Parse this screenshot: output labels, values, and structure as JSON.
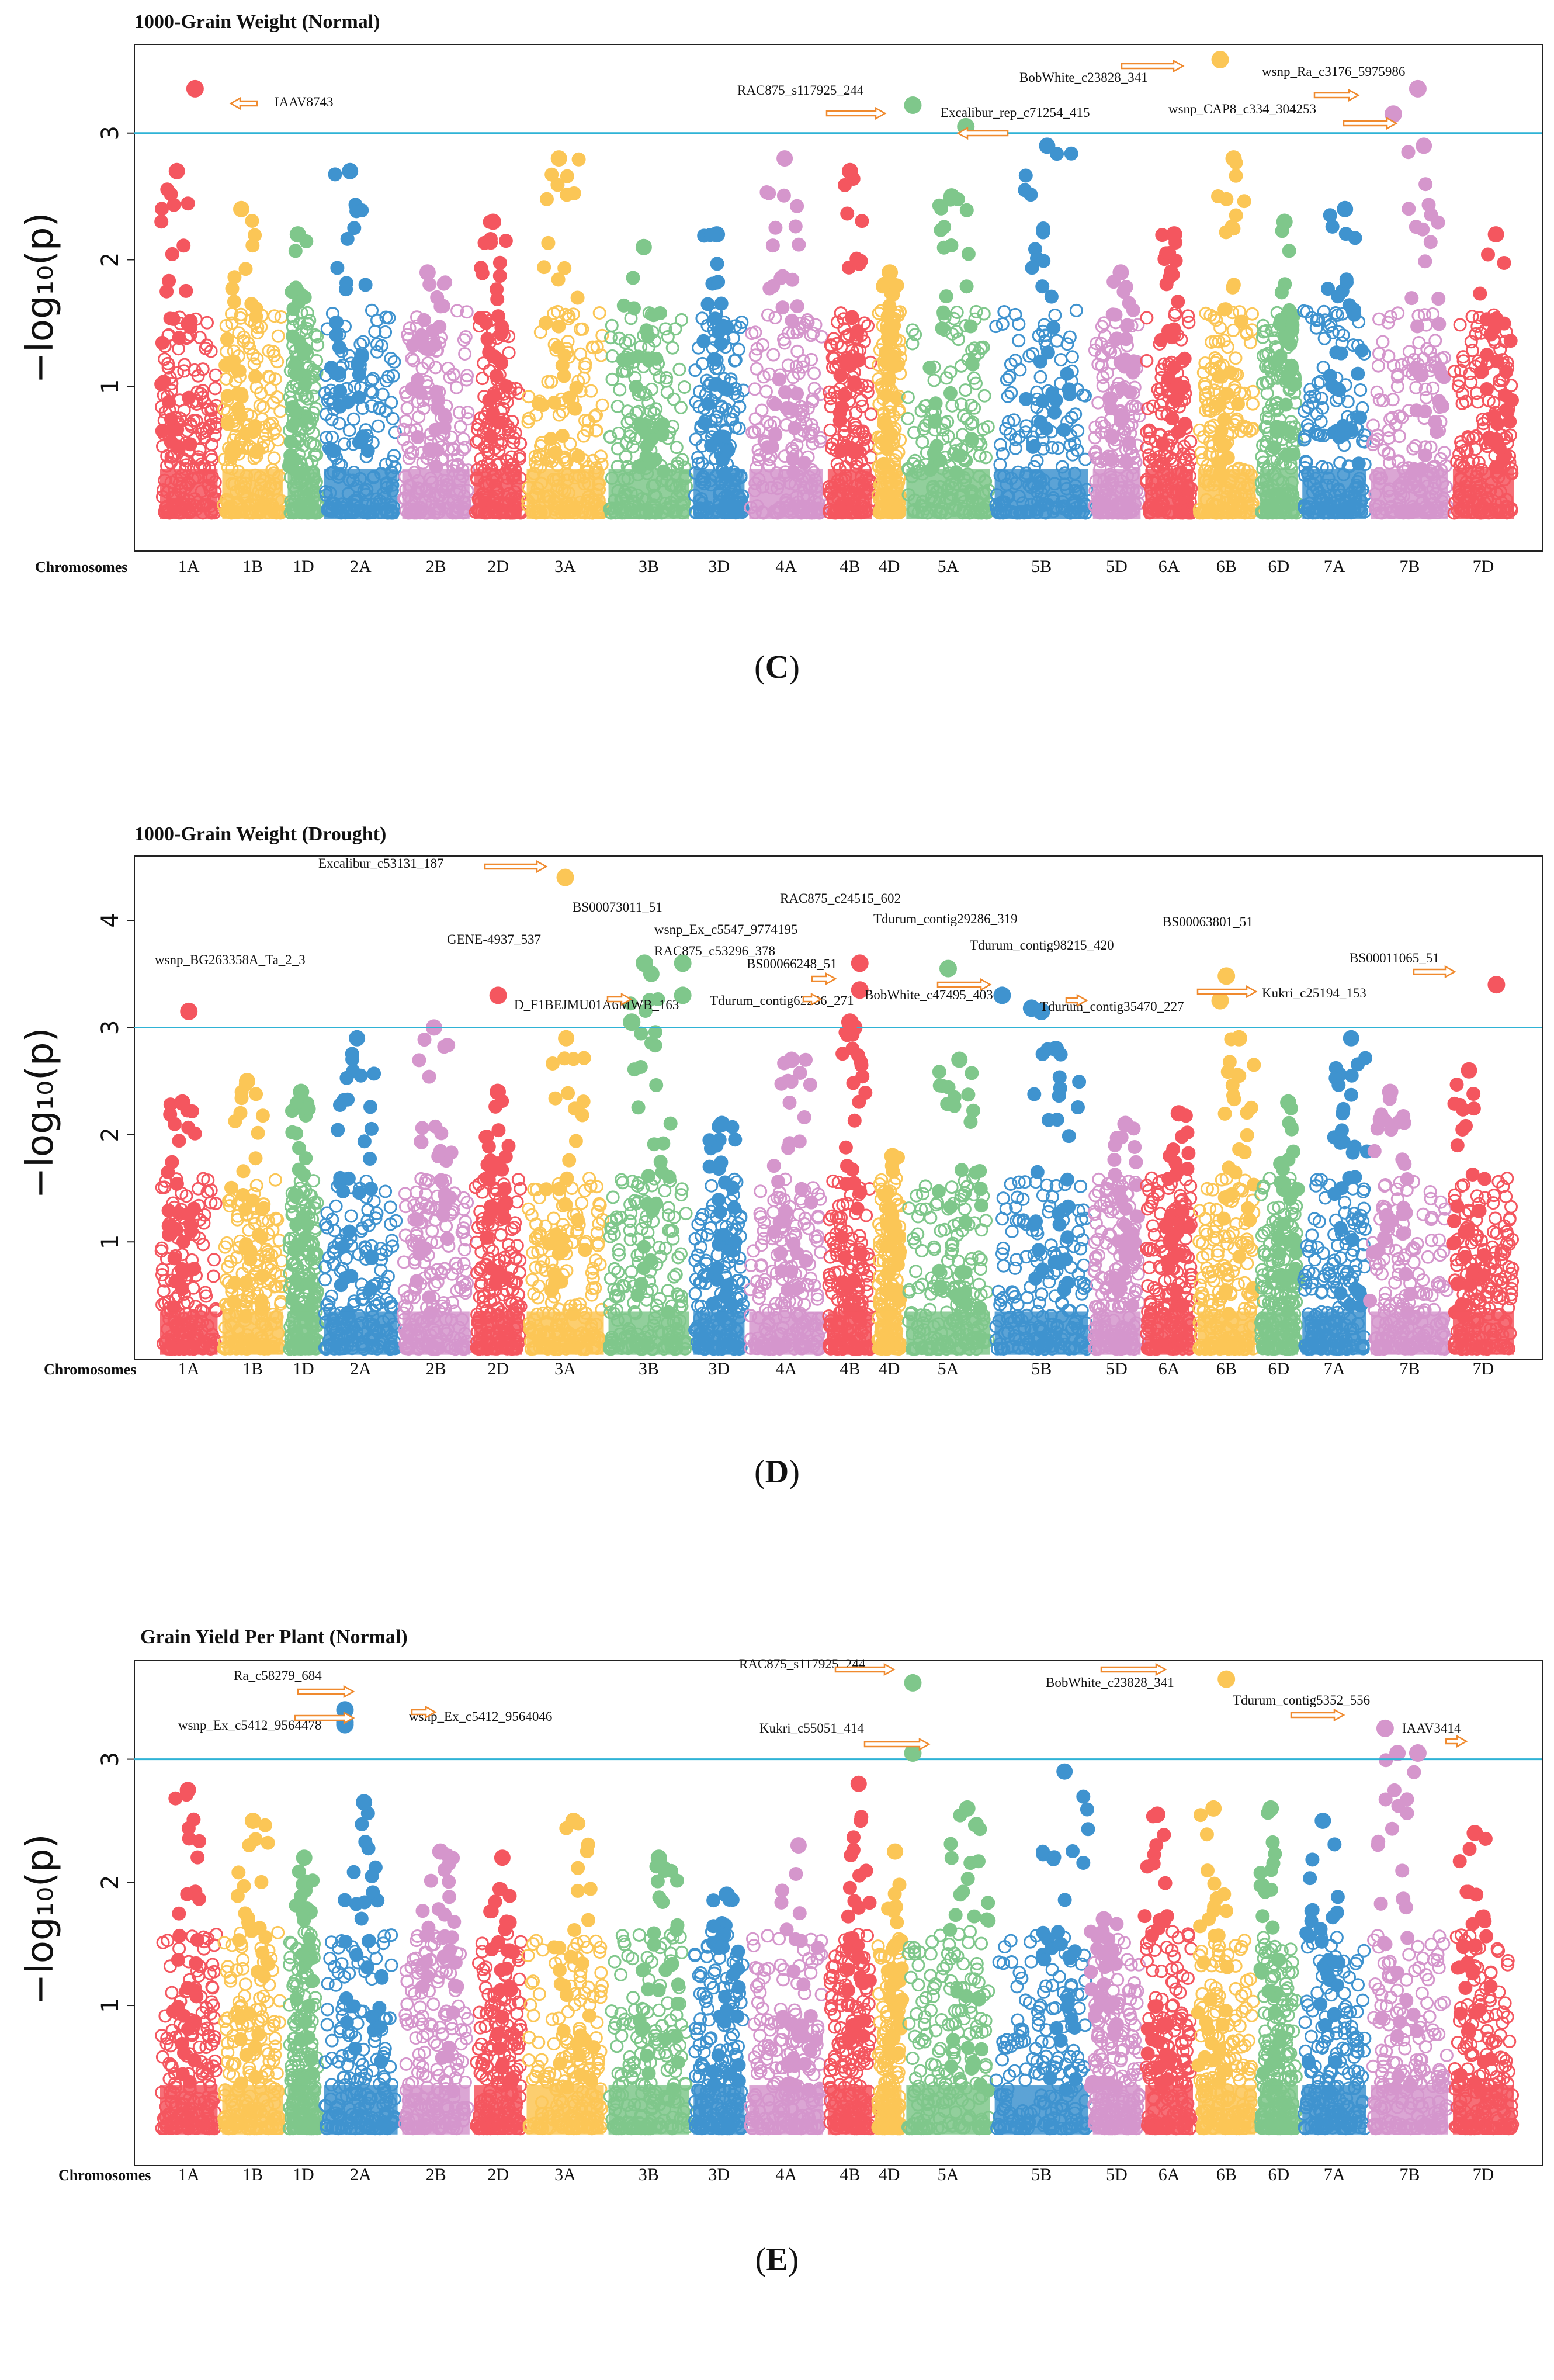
{
  "figure": {
    "chromosomes": [
      "1A",
      "1B",
      "1D",
      "2A",
      "2B",
      "2D",
      "3A",
      "3B",
      "3D",
      "4A",
      "4B",
      "4D",
      "5A",
      "5B",
      "5D",
      "6A",
      "6B",
      "6D",
      "7A",
      "7B",
      "7D"
    ],
    "colors": {
      "1A": "#f4565f",
      "1B": "#fbc656",
      "1D": "#7fc78b",
      "2A": "#3f93cf",
      "2B": "#d596cc",
      "2D": "#f4565f",
      "3A": "#fbc656",
      "3B": "#7fc78b",
      "3D": "#3f93cf",
      "4A": "#d596cc",
      "4B": "#f4565f",
      "4D": "#fbc656",
      "5A": "#7fc78b",
      "5B": "#3f93cf",
      "5D": "#d596cc",
      "6A": "#f4565f",
      "6B": "#fbc656",
      "6D": "#7fc78b",
      "7A": "#3f93cf",
      "7B": "#d596cc",
      "7D": "#f4565f"
    },
    "threshold_color": "#2fb3d6",
    "arrow_color": "#f08a2e",
    "chromosomes_axis_title": "Chromosomes",
    "ylabel": "−log₁₀(p)"
  },
  "chart_data": [
    {
      "type": "scatter",
      "panel_label_prefix": "(",
      "panel_letter": "C",
      "panel_label_suffix": ")",
      "title": "1000-Grain Weight (Normal)",
      "xlabel": "Chromosomes",
      "ylabel": "−log₁₀(p)",
      "ylim": [
        -0.3,
        3.7
      ],
      "yticks": [
        "1",
        "2",
        "3"
      ],
      "threshold": 3.0,
      "chrom_max": {
        "1A": 2.7,
        "1B": 2.4,
        "1D": 2.2,
        "2A": 2.7,
        "2B": 1.9,
        "2D": 2.3,
        "3A": 2.8,
        "3B": 2.1,
        "3D": 2.2,
        "4A": 2.8,
        "4B": 2.7,
        "4D": 1.9,
        "5A": 2.5,
        "5B": 2.9,
        "5D": 1.9,
        "6A": 2.2,
        "6B": 2.8,
        "6D": 2.3,
        "7A": 2.4,
        "7B": 2.9,
        "7D": 2.2
      },
      "significant": [
        {
          "snp": "IAAV8743",
          "chrom": "1A",
          "pos": 0.6,
          "y": 3.35
        },
        {
          "snp": "RAC875_s117925_244",
          "chrom": "5A",
          "pos": 0.1,
          "y": 3.22
        },
        {
          "snp": "Excalibur_rep_c71254_415",
          "chrom": "5A",
          "pos": 0.7,
          "y": 3.05
        },
        {
          "snp": "BobWhite_c23828_341",
          "chrom": "6B",
          "pos": 0.4,
          "y": 3.58
        },
        {
          "snp": "wsnp_Ra_c3176_5975986",
          "chrom": "7B",
          "pos": 0.6,
          "y": 3.35
        },
        {
          "snp": "wsnp_CAP8_c334_304253",
          "chrom": "7B",
          "pos": 0.3,
          "y": 3.15
        }
      ]
    },
    {
      "type": "scatter",
      "panel_label_prefix": "(",
      "panel_letter": "D",
      "panel_label_suffix": ")",
      "title": "1000-Grain Weight (Drought)",
      "xlabel": "Chromosomes",
      "ylabel": "−log₁₀(p)",
      "ylim": [
        -0.1,
        4.6
      ],
      "yticks": [
        "1",
        "2",
        "3",
        "4"
      ],
      "threshold": 3.0,
      "chrom_max": {
        "1A": 2.3,
        "1B": 2.5,
        "1D": 2.4,
        "2A": 2.9,
        "2B": 3.0,
        "2D": 2.4,
        "3A": 2.9,
        "3B": 3.5,
        "3D": 2.1,
        "4A": 2.7,
        "4B": 3.0,
        "4D": 1.8,
        "5A": 2.7,
        "5B": 2.8,
        "5D": 2.1,
        "6A": 2.2,
        "6B": 2.9,
        "6D": 2.3,
        "7A": 2.9,
        "7B": 2.4,
        "7D": 2.6
      },
      "significant": [
        {
          "snp": "wsnp_BG263358A_Ta_2_3",
          "chrom": "1A",
          "pos": 0.5,
          "y": 3.15
        },
        {
          "snp": "Excalibur_c53131_187",
          "chrom": "3A",
          "pos": 0.5,
          "y": 4.4
        },
        {
          "snp": "GENE-4937_537",
          "chrom": "2D",
          "pos": 0.5,
          "y": 3.3
        },
        {
          "snp": "BS00073011_51",
          "chrom": "3B",
          "pos": 0.45,
          "y": 3.6
        },
        {
          "snp": "D_F1BEJMU01A6MWB_163",
          "chrom": "3B",
          "pos": 0.3,
          "y": 3.05
        },
        {
          "snp": "wsnp_Ex_c5547_9774195",
          "chrom": "3B",
          "pos": 0.9,
          "y": 3.6
        },
        {
          "snp": "RAC875_c53296_378",
          "chrom": "3B",
          "pos": 0.9,
          "y": 3.3
        },
        {
          "snp": "RAC875_c24515_602",
          "chrom": "4B",
          "pos": 0.7,
          "y": 3.6
        },
        {
          "snp": "BS00066248_51",
          "chrom": "4B",
          "pos": 0.7,
          "y": 3.35
        },
        {
          "snp": "Tdurum_contig62286_271",
          "chrom": "4B",
          "pos": 0.5,
          "y": 3.05
        },
        {
          "snp": "Tdurum_contig29286_319",
          "chrom": "5A",
          "pos": 0.5,
          "y": 3.55
        },
        {
          "snp": "BobWhite_c47495_403",
          "chrom": "5B",
          "pos": 0.1,
          "y": 3.3
        },
        {
          "snp": "Tdurum_contig98215_420",
          "chrom": "5B",
          "pos": 0.4,
          "y": 3.18
        },
        {
          "snp": "Tdurum_contig35470_227",
          "chrom": "5B",
          "pos": 0.5,
          "y": 3.15
        },
        {
          "snp": "BS00063801_51",
          "chrom": "6B",
          "pos": 0.5,
          "y": 3.48
        },
        {
          "snp": "Kukri_c25194_153",
          "chrom": "6B",
          "pos": 0.4,
          "y": 3.25
        },
        {
          "snp": "BS00011065_51",
          "chrom": "7D",
          "pos": 0.7,
          "y": 3.4
        }
      ]
    },
    {
      "type": "scatter",
      "panel_label_prefix": "(",
      "panel_letter": "E",
      "panel_label_suffix": ")",
      "title": "Grain Yield Per Plant (Normal)",
      "xlabel": "Chromosomes",
      "ylabel": "−log₁₀(p)",
      "ylim": [
        -0.3,
        3.8
      ],
      "yticks": [
        "1",
        "2",
        "3"
      ],
      "threshold": 3.0,
      "chrom_max": {
        "1A": 2.75,
        "1B": 2.5,
        "1D": 2.2,
        "2A": 2.65,
        "2B": 2.25,
        "2D": 2.2,
        "3A": 2.5,
        "3B": 2.2,
        "3D": 1.9,
        "4A": 2.3,
        "4B": 2.8,
        "4D": 2.25,
        "5A": 2.6,
        "5B": 2.9,
        "5D": 1.7,
        "6A": 2.55,
        "6B": 2.6,
        "6D": 2.6,
        "7A": 2.5,
        "7B": 3.05,
        "7D": 2.4
      },
      "significant": [
        {
          "snp": "Ra_c58279_684",
          "chrom": "2A",
          "pos": 0.3,
          "y": 3.4
        },
        {
          "snp": "wsnp_Ex_c5412_9564046",
          "chrom": "2A",
          "pos": 0.3,
          "y": 3.3
        },
        {
          "snp": "wsnp_Ex_c5412_9564478",
          "chrom": "2A",
          "pos": 0.3,
          "y": 3.28
        },
        {
          "snp": "RAC875_s117925_244",
          "chrom": "5A",
          "pos": 0.1,
          "y": 3.62
        },
        {
          "snp": "Kukri_c55051_414",
          "chrom": "5A",
          "pos": 0.1,
          "y": 3.05
        },
        {
          "snp": "BobWhite_c23828_341",
          "chrom": "6B",
          "pos": 0.5,
          "y": 3.65
        },
        {
          "snp": "Tdurum_contig5352_556",
          "chrom": "7B",
          "pos": 0.2,
          "y": 3.25
        },
        {
          "snp": "IAAV3414",
          "chrom": "7B",
          "pos": 0.6,
          "y": 3.05
        }
      ]
    }
  ]
}
